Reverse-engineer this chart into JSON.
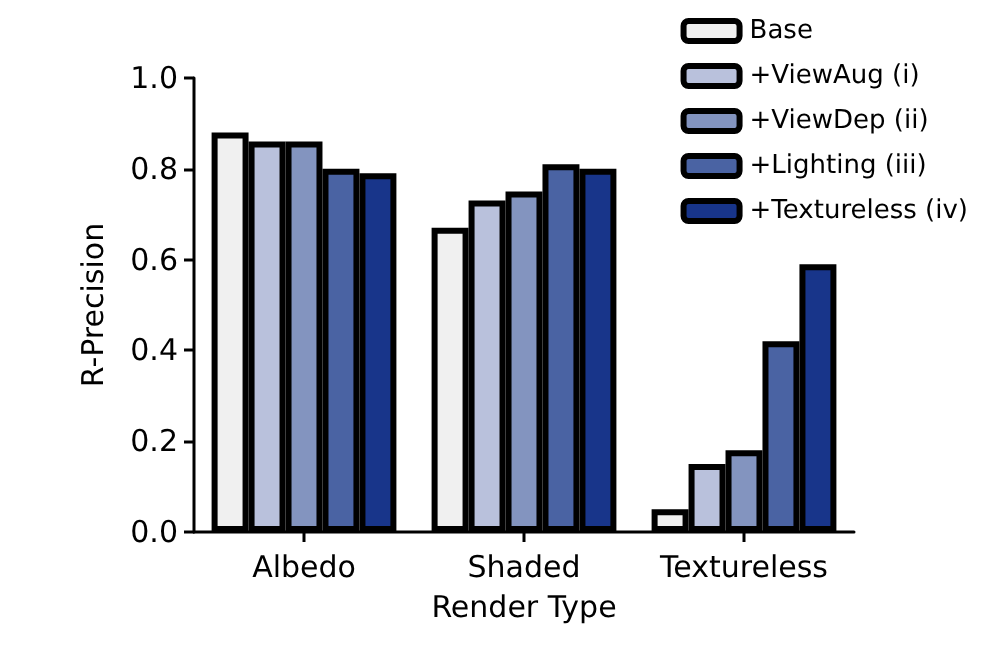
{
  "chart_data": {
    "type": "bar",
    "xlabel": "Render Type",
    "ylabel": "R-Precision",
    "categories": [
      "Albedo",
      "Shaded",
      "Textureless"
    ],
    "ylim": [
      0,
      1
    ],
    "yticks": [
      {
        "value": 0,
        "label": "0.0"
      },
      {
        "value": 0.2,
        "label": "0.2"
      },
      {
        "value": 0.4,
        "label": "0.4"
      },
      {
        "value": 0.6,
        "label": "0.6"
      },
      {
        "value": 0.8,
        "label": "0.8"
      },
      {
        "value": 1,
        "label": "1.0"
      }
    ],
    "grid": false,
    "legend": "top right",
    "series": [
      {
        "name": "Base",
        "color": "#f0f0f0",
        "values": [
          0.88,
          0.67,
          0.05
        ]
      },
      {
        "name": "+ViewAug (i)",
        "color": "#b9c1dc",
        "values": [
          0.86,
          0.73,
          0.15
        ]
      },
      {
        "name": "+ViewDep (ii)",
        "color": "#8394bf",
        "values": [
          0.86,
          0.75,
          0.18
        ]
      },
      {
        "name": "+Lighting (iii)",
        "color": "#4a63a3",
        "values": [
          0.8,
          0.81,
          0.42
        ]
      },
      {
        "name": "+Textureless (iv)",
        "color": "#18358a",
        "values": [
          0.79,
          0.8,
          0.59
        ]
      }
    ]
  }
}
